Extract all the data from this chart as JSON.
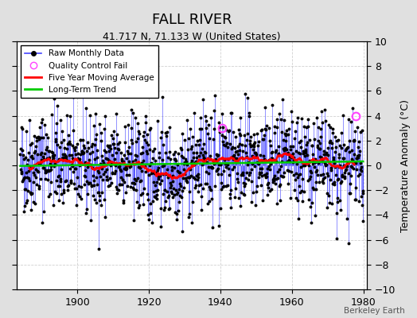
{
  "title": "FALL RIVER",
  "subtitle": "41.717 N, 71.133 W (United States)",
  "ylabel": "Temperature Anomaly (°C)",
  "ylim": [
    -10,
    10
  ],
  "xlim": [
    1883,
    1981
  ],
  "xticks": [
    1900,
    1920,
    1940,
    1960,
    1980
  ],
  "yticks": [
    -10,
    -8,
    -6,
    -4,
    -2,
    0,
    2,
    4,
    6,
    8,
    10
  ],
  "raw_line_color": "#4444FF",
  "raw_fill_color": "#AAAAFF",
  "dot_color": "#000000",
  "ma_color": "#FF0000",
  "trend_color": "#00CC00",
  "qc_color": "#FF44FF",
  "background_color": "#E0E0E0",
  "plot_bg_color": "#FFFFFF",
  "title_fontsize": 13,
  "subtitle_fontsize": 9,
  "seed": 42
}
